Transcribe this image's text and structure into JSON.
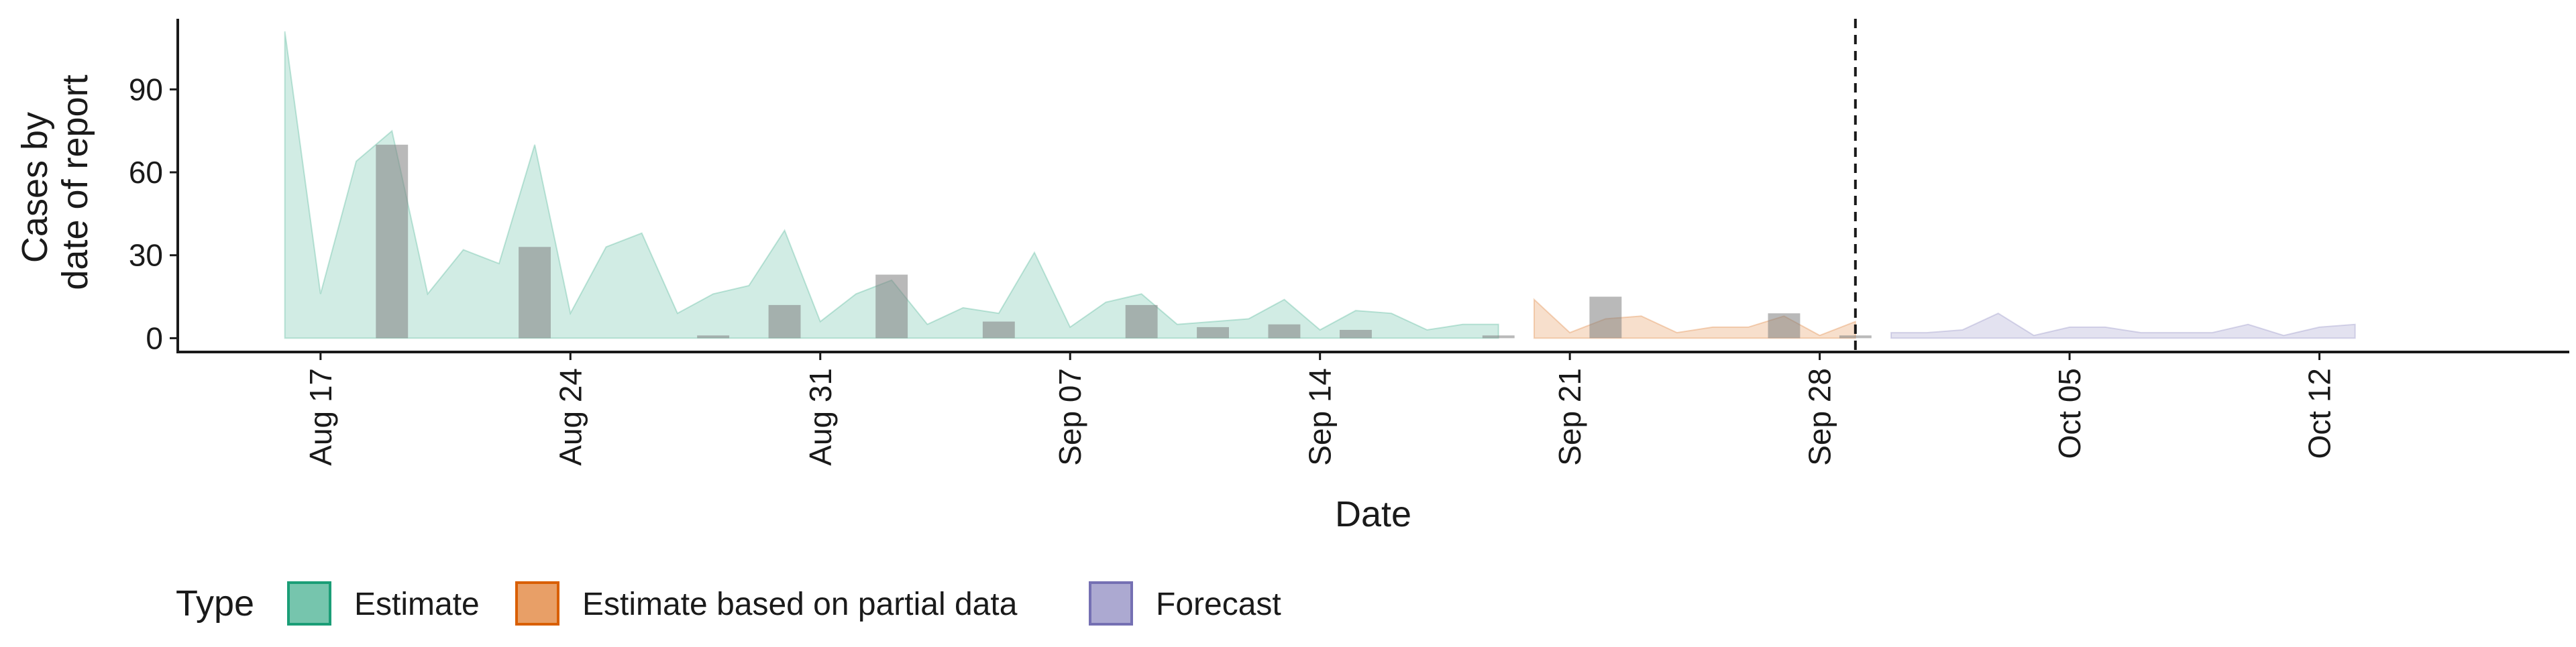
{
  "colors": {
    "estimate": "#1b9e77",
    "estimate_partial": "#d95f02",
    "forecast": "#7570b3",
    "reported": "#7f7f7f",
    "axis": "#1a1a1a"
  },
  "chart_data": {
    "type": "area",
    "xlabel": "Date",
    "ylabel_lines": [
      "Cases by",
      "date of report"
    ],
    "ylim": [
      -5,
      117
    ],
    "y_ticks": [
      0,
      30,
      60,
      90
    ],
    "x_range": [
      "2020-08-13",
      "2020-10-19"
    ],
    "x_ticks": [
      {
        "date": "2020-08-17",
        "label": "Aug 17"
      },
      {
        "date": "2020-08-24",
        "label": "Aug 24"
      },
      {
        "date": "2020-08-31",
        "label": "Aug 31"
      },
      {
        "date": "2020-09-07",
        "label": "Sep 07"
      },
      {
        "date": "2020-09-14",
        "label": "Sep 14"
      },
      {
        "date": "2020-09-21",
        "label": "Sep 21"
      },
      {
        "date": "2020-09-28",
        "label": "Sep 28"
      },
      {
        "date": "2020-10-05",
        "label": "Oct 05"
      },
      {
        "date": "2020-10-12",
        "label": "Oct 12"
      }
    ],
    "vline_date": "2020-09-29",
    "legend": {
      "title": "Type",
      "position": "bottom",
      "items": [
        {
          "key": "estimate",
          "label": "Estimate"
        },
        {
          "key": "estimate_partial",
          "label": "Estimate based on partial data"
        },
        {
          "key": "forecast",
          "label": "Forecast"
        }
      ]
    },
    "series": [
      {
        "key": "estimate",
        "name": "Estimate",
        "points": [
          [
            "2020-08-16",
            111
          ],
          [
            "2020-08-17",
            16
          ],
          [
            "2020-08-18",
            64
          ],
          [
            "2020-08-19",
            75
          ],
          [
            "2020-08-20",
            16
          ],
          [
            "2020-08-21",
            32
          ],
          [
            "2020-08-22",
            27
          ],
          [
            "2020-08-23",
            70
          ],
          [
            "2020-08-24",
            9
          ],
          [
            "2020-08-25",
            33
          ],
          [
            "2020-08-26",
            38
          ],
          [
            "2020-08-27",
            9
          ],
          [
            "2020-08-28",
            16
          ],
          [
            "2020-08-29",
            19
          ],
          [
            "2020-08-30",
            39
          ],
          [
            "2020-08-31",
            6
          ],
          [
            "2020-09-01",
            16
          ],
          [
            "2020-09-02",
            21
          ],
          [
            "2020-09-03",
            5
          ],
          [
            "2020-09-04",
            11
          ],
          [
            "2020-09-05",
            9
          ],
          [
            "2020-09-06",
            31
          ],
          [
            "2020-09-07",
            4
          ],
          [
            "2020-09-08",
            13
          ],
          [
            "2020-09-09",
            16
          ],
          [
            "2020-09-10",
            5
          ],
          [
            "2020-09-11",
            6
          ],
          [
            "2020-09-12",
            7
          ],
          [
            "2020-09-13",
            14
          ],
          [
            "2020-09-14",
            3
          ],
          [
            "2020-09-15",
            10
          ],
          [
            "2020-09-16",
            9
          ],
          [
            "2020-09-17",
            3
          ],
          [
            "2020-09-18",
            5
          ],
          [
            "2020-09-19",
            5
          ]
        ]
      },
      {
        "key": "estimate_partial",
        "name": "Estimate based on partial data",
        "points": [
          [
            "2020-09-20",
            14
          ],
          [
            "2020-09-21",
            2
          ],
          [
            "2020-09-22",
            7
          ],
          [
            "2020-09-23",
            8
          ],
          [
            "2020-09-24",
            2
          ],
          [
            "2020-09-25",
            4
          ],
          [
            "2020-09-26",
            4
          ],
          [
            "2020-09-27",
            8
          ],
          [
            "2020-09-28",
            1
          ],
          [
            "2020-09-29",
            6
          ]
        ]
      },
      {
        "key": "forecast",
        "name": "Forecast",
        "points": [
          [
            "2020-09-30",
            2
          ],
          [
            "2020-10-01",
            2
          ],
          [
            "2020-10-02",
            3
          ],
          [
            "2020-10-03",
            9
          ],
          [
            "2020-10-04",
            1
          ],
          [
            "2020-10-05",
            4
          ],
          [
            "2020-10-06",
            4
          ],
          [
            "2020-10-07",
            2
          ],
          [
            "2020-10-08",
            2
          ],
          [
            "2020-10-09",
            2
          ],
          [
            "2020-10-10",
            5
          ],
          [
            "2020-10-11",
            1
          ],
          [
            "2020-10-12",
            4
          ],
          [
            "2020-10-13",
            5
          ]
        ]
      }
    ],
    "reported_bars": [
      [
        "2020-08-19",
        70
      ],
      [
        "2020-08-23",
        33
      ],
      [
        "2020-08-28",
        1
      ],
      [
        "2020-08-30",
        12
      ],
      [
        "2020-09-02",
        23
      ],
      [
        "2020-09-05",
        6
      ],
      [
        "2020-09-09",
        12
      ],
      [
        "2020-09-11",
        4
      ],
      [
        "2020-09-13",
        5
      ],
      [
        "2020-09-15",
        3
      ],
      [
        "2020-09-19",
        1
      ],
      [
        "2020-09-22",
        15
      ],
      [
        "2020-09-27",
        9
      ],
      [
        "2020-09-29",
        1
      ]
    ]
  }
}
